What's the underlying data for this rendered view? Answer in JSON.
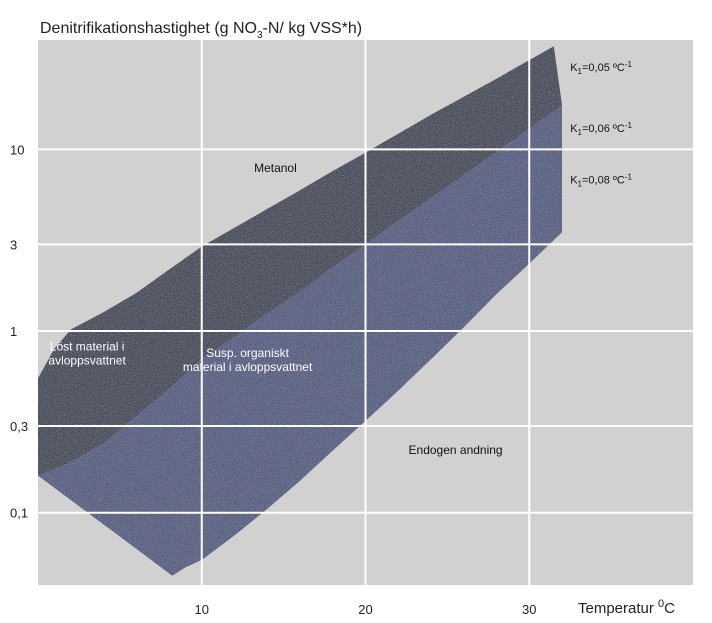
{
  "chart_data": {
    "type": "area",
    "title_main": "Denitrifikationshastighet (g NO",
    "title_sub": "3",
    "title_rest": "-N/ kg VSS*h)",
    "xlabel_main": "Temperatur ",
    "xlabel_sup": "0",
    "xlabel_unit": "C",
    "y_scale": "log",
    "x_ticks": [
      10,
      20,
      30
    ],
    "y_ticks": [
      {
        "value": 0.1,
        "label": "0,1"
      },
      {
        "value": 0.3,
        "label": "0,3"
      },
      {
        "value": 1,
        "label": "1"
      },
      {
        "value": 3,
        "label": "3"
      },
      {
        "value": 10,
        "label": "10"
      }
    ],
    "xlim": [
      0,
      40
    ],
    "ylim": [
      0.04,
      40
    ],
    "grid": true,
    "series": [
      {
        "name": "Metanol",
        "color": "#1c2744",
        "upper": [
          [
            0,
            0.55
          ],
          [
            1,
            0.8
          ],
          [
            2,
            1.02
          ],
          [
            4,
            1.27
          ],
          [
            6,
            1.62
          ],
          [
            8,
            2.18
          ],
          [
            10,
            2.92
          ],
          [
            12,
            3.7
          ],
          [
            14,
            4.7
          ],
          [
            16,
            5.95
          ],
          [
            18,
            7.6
          ],
          [
            20,
            9.6
          ],
          [
            22,
            12.2
          ],
          [
            24,
            15.5
          ],
          [
            26,
            19.5
          ],
          [
            28,
            24.5
          ],
          [
            30,
            31
          ],
          [
            31.5,
            37
          ]
        ],
        "lower": [
          [
            0,
            0.16
          ],
          [
            2,
            0.19
          ],
          [
            4,
            0.24
          ],
          [
            6,
            0.34
          ],
          [
            8,
            0.48
          ],
          [
            10,
            0.7
          ],
          [
            12,
            0.93
          ],
          [
            14,
            1.25
          ],
          [
            16,
            1.65
          ],
          [
            18,
            2.25
          ],
          [
            20,
            3.0
          ],
          [
            22,
            4.05
          ],
          [
            24,
            5.4
          ],
          [
            26,
            7.2
          ],
          [
            28,
            9.7
          ],
          [
            30,
            13.0
          ],
          [
            32,
            17.5
          ]
        ]
      },
      {
        "name": "Susp. organiskt material i avloppsvattnet",
        "color": "#404b7a",
        "upper": [
          [
            0,
            0.16
          ],
          [
            2,
            0.19
          ],
          [
            4,
            0.24
          ],
          [
            6,
            0.34
          ],
          [
            8,
            0.48
          ],
          [
            10,
            0.7
          ],
          [
            12,
            0.93
          ],
          [
            14,
            1.25
          ],
          [
            16,
            1.65
          ],
          [
            18,
            2.25
          ],
          [
            20,
            3.0
          ],
          [
            22,
            4.05
          ],
          [
            24,
            5.4
          ],
          [
            26,
            7.2
          ],
          [
            28,
            9.7
          ],
          [
            30,
            13.0
          ],
          [
            32,
            17.5
          ]
        ],
        "lower": [
          [
            8.2,
            0.045
          ],
          [
            9.0,
            0.05
          ],
          [
            10,
            0.055
          ],
          [
            12,
            0.075
          ],
          [
            14,
            0.105
          ],
          [
            16,
            0.15
          ],
          [
            18,
            0.22
          ],
          [
            20,
            0.32
          ],
          [
            22,
            0.47
          ],
          [
            24,
            0.7
          ],
          [
            26,
            1.05
          ],
          [
            28,
            1.6
          ],
          [
            30,
            2.35
          ],
          [
            32,
            3.5
          ]
        ]
      }
    ],
    "region_labels": [
      {
        "lines": [
          "Metanol"
        ],
        "x": 14.5,
        "y": 7.5
      },
      {
        "lines": [
          "Löst material i",
          "avloppsvattnet"
        ],
        "x": 3.0,
        "y": 0.78
      },
      {
        "lines": [
          "Susp. organiskt",
          "material i avloppsvattnet"
        ],
        "x": 12.8,
        "y": 0.72
      },
      {
        "lines": [
          "Endogen andning"
        ],
        "x": 25.5,
        "y": 0.21
      }
    ],
    "line_labels": [
      {
        "main": "K",
        "sub": "1",
        "rest": "=0,05 ºC",
        "sup": "-1",
        "x": 32.5,
        "y": 27
      },
      {
        "main": "K",
        "sub": "1",
        "rest": "=0,06 ºC",
        "sup": "-1",
        "x": 32.5,
        "y": 12.5
      },
      {
        "main": "K",
        "sub": "1",
        "rest": "=0,08 ºC",
        "sup": "-1",
        "x": 32.5,
        "y": 6.5
      }
    ],
    "plot_color": "#d2d1d1",
    "grid_color": "#ffffff"
  }
}
